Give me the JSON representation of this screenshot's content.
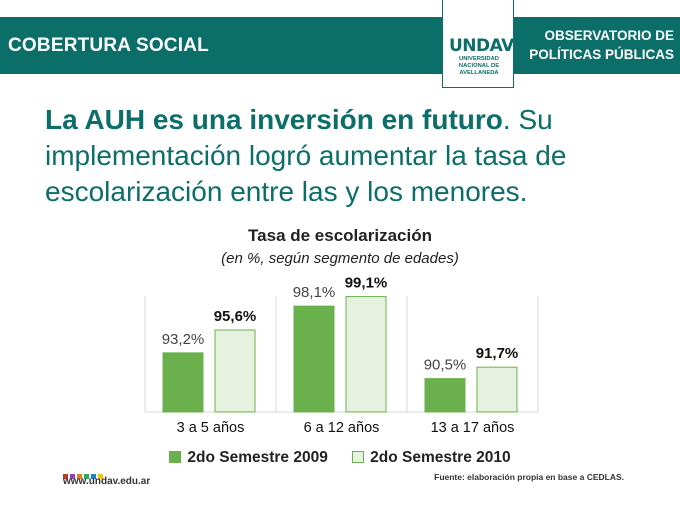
{
  "header": {
    "section_title": "COBERTURA SOCIAL",
    "org_line1": "OBSERVATORIO DE",
    "org_line2": "POLÍTICAS PÚBLICAS",
    "logo_text": "UNDAV",
    "logo_sub1": "UNIVERSIDAD",
    "logo_sub2": "NACIONAL DE",
    "logo_sub3": "AVELLANEDA"
  },
  "headline": {
    "bold": "La AUH es una inversión en futuro",
    "rest": ". Su implementación logró aumentar la tasa de escolarización entre las y los menores."
  },
  "chart_data": {
    "type": "bar",
    "title": "Tasa de escolarización",
    "subtitle": "(en %, según segmento de edades)",
    "categories": [
      "3 a 5 años",
      "6 a 12 años",
      "13 a 17 años"
    ],
    "series": [
      {
        "name": "2do Semestre 2009",
        "values": [
          93.2,
          98.1,
          90.5
        ],
        "labels": [
          "93,2%",
          "98,1%",
          "90,5%"
        ],
        "color": "#6ab04c"
      },
      {
        "name": "2do Semestre 2010",
        "values": [
          95.6,
          99.1,
          91.7
        ],
        "labels": [
          "95,6%",
          "99,1%",
          "91,7%"
        ],
        "color": "#e6f2df"
      }
    ],
    "ylim": [
      87,
      100
    ],
    "xlabel": "",
    "ylabel": "",
    "legend": "bottom"
  },
  "footer": {
    "source": "Fuente: elaboración propia en base a CEDLAS.",
    "website": "www.undav.edu.ar",
    "dot_colors": [
      "#c0392b",
      "#8e44ad",
      "#e67e22",
      "#27ae60",
      "#2980b9",
      "#f1c40f"
    ]
  },
  "colors": {
    "brand": "#0b6e68",
    "bar_outline": "#6ab04c"
  }
}
